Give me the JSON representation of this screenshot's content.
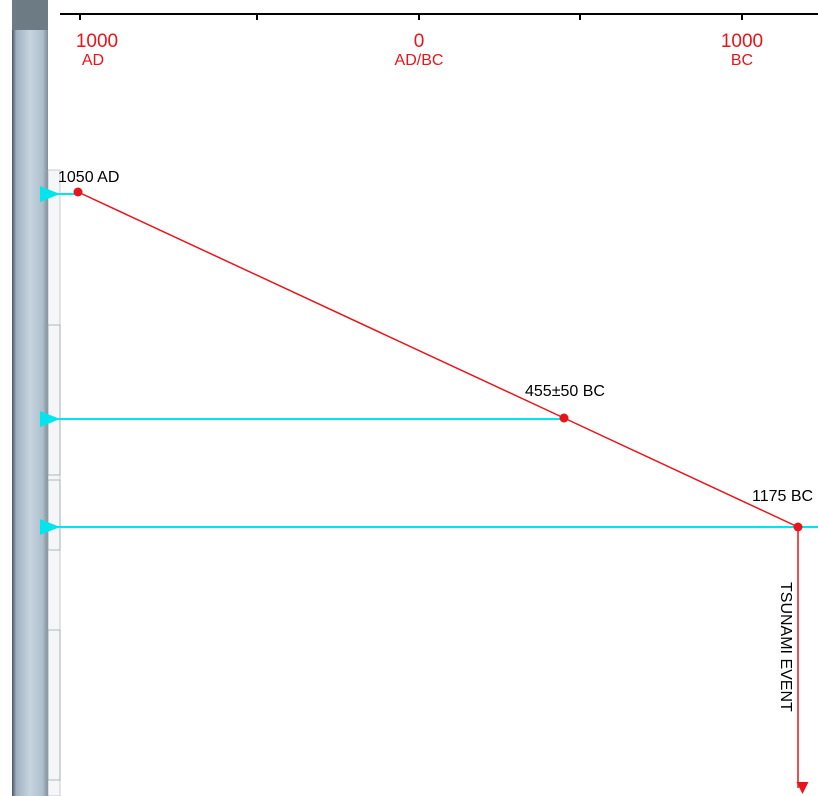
{
  "axis": {
    "ticks": [
      {
        "value": "1000",
        "era": "AD"
      },
      {
        "value": "0",
        "era": "AD/BC"
      },
      {
        "value": "1000",
        "era": "BC"
      }
    ]
  },
  "points": [
    {
      "label": "1050 AD"
    },
    {
      "label": "455±50 BC"
    },
    {
      "label": "1175 BC"
    }
  ],
  "event": {
    "label": "TSUNAMI EVENT"
  }
}
